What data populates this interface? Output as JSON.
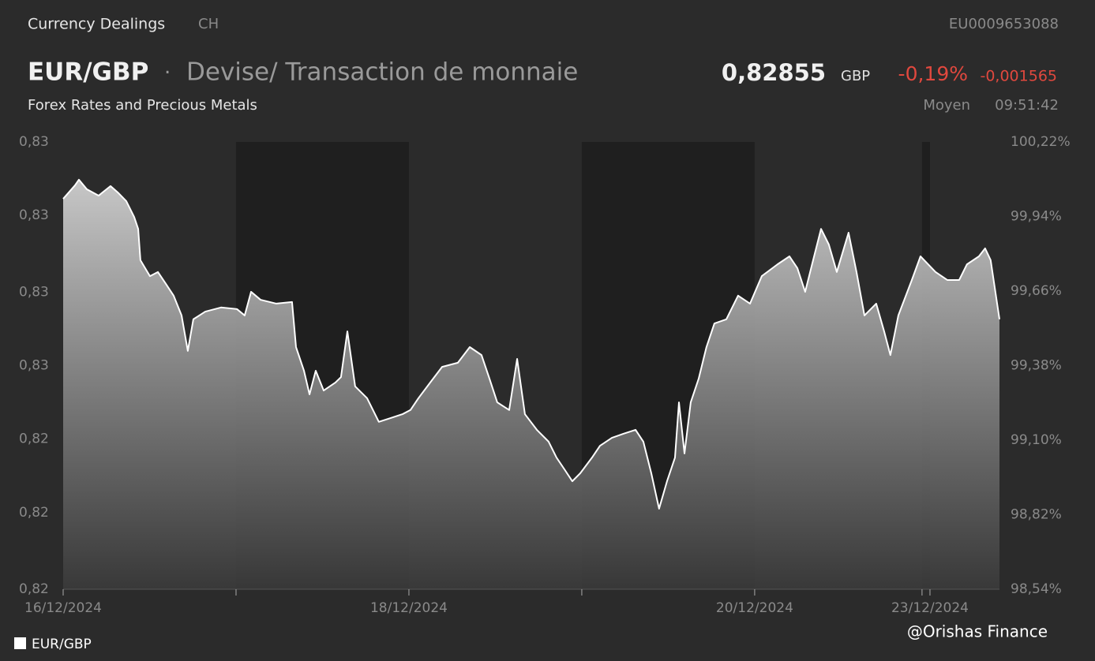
{
  "header": {
    "section": "Currency Dealings",
    "country": "CH",
    "isin": "EU0009653088",
    "symbol": "EUR/GBP",
    "separator": "·",
    "instrument": "Devise/ Transaction de monnaie",
    "price": "0,82855",
    "currency": "GBP",
    "change_pct": "-0,19%",
    "change_abs": "-0,001565",
    "market": "Forex Rates and Precious Metals",
    "price_type": "Moyen",
    "time": "09:51:42"
  },
  "watermark": "@Orishas Finance",
  "chart_data": {
    "type": "area",
    "x": [
      0,
      0.068,
      0.091,
      0.137,
      0.205,
      0.274,
      0.32,
      0.365,
      0.411,
      0.434,
      0.447,
      0.502,
      0.548,
      0.594,
      0.639,
      0.685,
      0.721,
      0.753,
      0.822,
      0.913,
      1.005,
      1.05,
      1.087,
      1.142,
      1.233,
      1.324,
      1.347,
      1.393,
      1.425,
      1.461,
      1.507,
      1.575,
      1.607,
      1.644,
      1.689,
      1.758,
      1.826,
      1.895,
      1.963,
      2.009,
      2.055,
      2.123,
      2.192,
      2.283,
      2.352,
      2.42,
      2.466,
      2.511,
      2.58,
      2.626,
      2.671,
      2.74,
      2.808,
      2.854,
      2.9,
      2.945,
      2.991,
      3.059,
      3.105,
      3.174,
      3.242,
      3.311,
      3.356,
      3.402,
      3.447,
      3.493,
      3.539,
      3.562,
      3.594,
      3.63,
      3.676,
      3.721,
      3.767,
      3.836,
      3.904,
      3.973,
      4.041,
      4.132,
      4.201,
      4.247,
      4.292,
      4.338,
      4.384,
      4.429,
      4.475,
      4.543,
      4.589,
      4.635,
      4.703,
      4.749,
      4.785,
      4.831,
      4.909,
      4.959,
      5.046,
      5.114,
      5.183,
      5.228,
      5.297,
      5.333,
      5.365,
      5.416
    ],
    "series": [
      {
        "name": "EUR/GBP",
        "color": "#ffffff",
        "values": [
          0.83232,
          0.83274,
          0.83292,
          0.83262,
          0.83242,
          0.83272,
          0.8325,
          0.83225,
          0.83175,
          0.83138,
          0.8304,
          0.8299,
          0.83003,
          0.82966,
          0.82929,
          0.82867,
          0.82756,
          0.82855,
          0.82879,
          0.82892,
          0.82887,
          0.82867,
          0.82941,
          0.82916,
          0.82904,
          0.82909,
          0.82768,
          0.82694,
          0.8262,
          0.82694,
          0.82632,
          0.82657,
          0.82674,
          0.82817,
          0.82645,
          0.82608,
          0.82534,
          0.82546,
          0.82558,
          0.82571,
          0.82608,
          0.82657,
          0.82706,
          0.82719,
          0.82768,
          0.82743,
          0.82669,
          0.82595,
          0.82571,
          0.82731,
          0.82558,
          0.82509,
          0.82472,
          0.82422,
          0.82385,
          0.82348,
          0.82373,
          0.82422,
          0.82459,
          0.82484,
          0.82497,
          0.82509,
          0.82472,
          0.82373,
          0.82262,
          0.82348,
          0.82422,
          0.82595,
          0.82435,
          0.82595,
          0.82669,
          0.82768,
          0.82842,
          0.82855,
          0.82929,
          0.82904,
          0.8299,
          0.83027,
          0.83052,
          0.83015,
          0.82941,
          0.8304,
          0.83138,
          0.83089,
          0.83003,
          0.83126,
          0.83003,
          0.82867,
          0.82904,
          0.82817,
          0.82743,
          0.82867,
          0.82978,
          0.83052,
          0.83003,
          0.82978,
          0.82978,
          0.83027,
          0.83052,
          0.83077,
          0.8304,
          0.82855
        ]
      }
    ],
    "xlim": [
      0,
      5.416
    ],
    "xticks": [
      {
        "value": 0,
        "label": "16/12/2024"
      },
      {
        "value": 2,
        "label": "18/12/2024"
      },
      {
        "value": 4,
        "label": "20/12/2024"
      },
      {
        "value": 5.014,
        "label": "23/12/2024"
      }
    ],
    "xticks_minor": [
      1,
      3,
      4.968
    ],
    "shaded_bands": [
      [
        1,
        2
      ],
      [
        3,
        4
      ],
      [
        4.968,
        5.014
      ]
    ],
    "ylim": [
      0.8201,
      0.8341
    ],
    "yticks": [
      {
        "value": 0.8341,
        "label": "0,83"
      },
      {
        "value": 0.8318,
        "label": "0,83"
      },
      {
        "value": 0.8294,
        "label": "0,83"
      },
      {
        "value": 0.8271,
        "label": "0,83"
      },
      {
        "value": 0.8248,
        "label": "0,82"
      },
      {
        "value": 0.8225,
        "label": "0,82"
      },
      {
        "value": 0.8201,
        "label": "0,82"
      }
    ],
    "y2lim": [
      98.54,
      100.22
    ],
    "y2ticks": [
      {
        "value": 100.22,
        "label": "100,22%"
      },
      {
        "value": 99.94,
        "label": "99,94%"
      },
      {
        "value": 99.66,
        "label": "99,66%"
      },
      {
        "value": 99.38,
        "label": "99,38%"
      },
      {
        "value": 99.1,
        "label": "99,10%"
      },
      {
        "value": 98.82,
        "label": "98,82%"
      },
      {
        "value": 98.54,
        "label": "98,54%"
      }
    ],
    "legend": "bottom-left"
  }
}
